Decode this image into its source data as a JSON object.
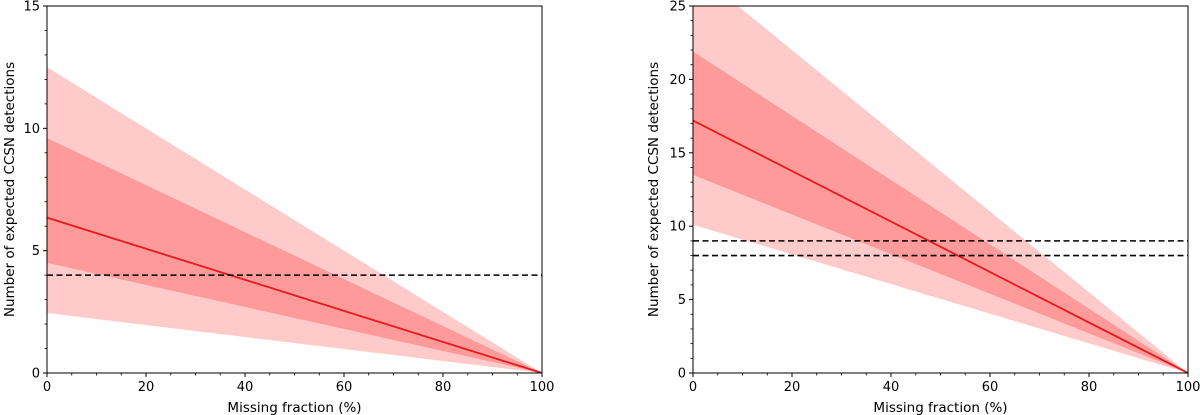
{
  "chart_data": [
    {
      "type": "line",
      "xlabel": "Missing fraction (%)",
      "ylabel": "Number of expected CCSN detections",
      "xlim": [
        0,
        100
      ],
      "ylim": [
        0,
        15
      ],
      "x_ticks": [
        0,
        20,
        40,
        60,
        80,
        100
      ],
      "y_ticks": [
        0,
        5,
        10,
        15
      ],
      "series": [
        {
          "role": "outer-band",
          "x": [
            0,
            100
          ],
          "upper": [
            12.5,
            0
          ],
          "lower": [
            2.45,
            0
          ],
          "color": "#ffcaca"
        },
        {
          "role": "inner-band",
          "x": [
            0,
            100
          ],
          "upper": [
            9.6,
            0
          ],
          "lower": [
            4.5,
            0
          ],
          "color": "#ff9a9a"
        },
        {
          "role": "median-line",
          "x": [
            0,
            100
          ],
          "y": [
            6.35,
            0
          ],
          "color": "#e41a1c"
        }
      ],
      "hlines": [
        4
      ],
      "grid": false
    },
    {
      "type": "line",
      "xlabel": "Missing fraction (%)",
      "ylabel": "Number of expected CCSN detections",
      "xlim": [
        0,
        100
      ],
      "ylim": [
        0,
        25
      ],
      "x_ticks": [
        0,
        20,
        40,
        60,
        80,
        100
      ],
      "y_ticks": [
        0,
        5,
        10,
        15,
        20,
        25
      ],
      "series": [
        {
          "role": "outer-band",
          "x": [
            0,
            100
          ],
          "upper": [
            27.5,
            0
          ],
          "lower": [
            10.1,
            0
          ],
          "color": "#ffcaca"
        },
        {
          "role": "inner-band",
          "x": [
            0,
            100
          ],
          "upper": [
            21.9,
            0
          ],
          "lower": [
            13.5,
            0
          ],
          "color": "#ff9a9a"
        },
        {
          "role": "median-line",
          "x": [
            0,
            100
          ],
          "y": [
            17.2,
            0
          ],
          "color": "#e41a1c"
        }
      ],
      "hlines": [
        9,
        8
      ],
      "grid": false
    }
  ]
}
